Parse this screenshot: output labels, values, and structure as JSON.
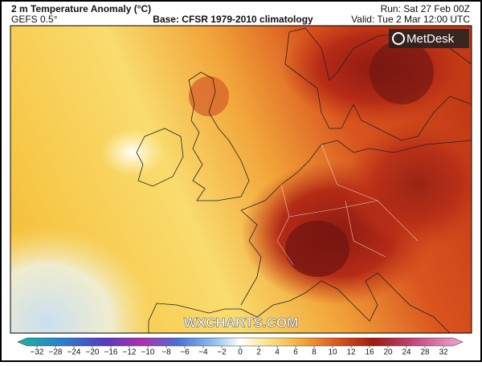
{
  "header": {
    "title": "2 m Temperature Anomaly (°C)",
    "model": "GEFS 0.5°",
    "base": "Base: CFSR 1979-2010 climatology",
    "run": "Run: Sat 27 Feb 00Z",
    "valid": "Valid: Tue 2 Mar 12:00 UTC"
  },
  "logo": "MetDesk",
  "watermark": "WXCHARTS.COM",
  "colorbar": {
    "ticks": [
      {
        "value": -32,
        "label": "−32"
      },
      {
        "value": -28,
        "label": "−28"
      },
      {
        "value": -24,
        "label": "−24"
      },
      {
        "value": -20,
        "label": "−20"
      },
      {
        "value": -16,
        "label": "−16"
      },
      {
        "value": -12,
        "label": "−12"
      },
      {
        "value": -10,
        "label": "−10"
      },
      {
        "value": -8,
        "label": "−8"
      },
      {
        "value": -6,
        "label": "−6"
      },
      {
        "value": -4,
        "label": "−4"
      },
      {
        "value": -2,
        "label": "−2"
      },
      0,
      2,
      4,
      6,
      8,
      10,
      12,
      16,
      20,
      24,
      28,
      32
    ]
  }
}
